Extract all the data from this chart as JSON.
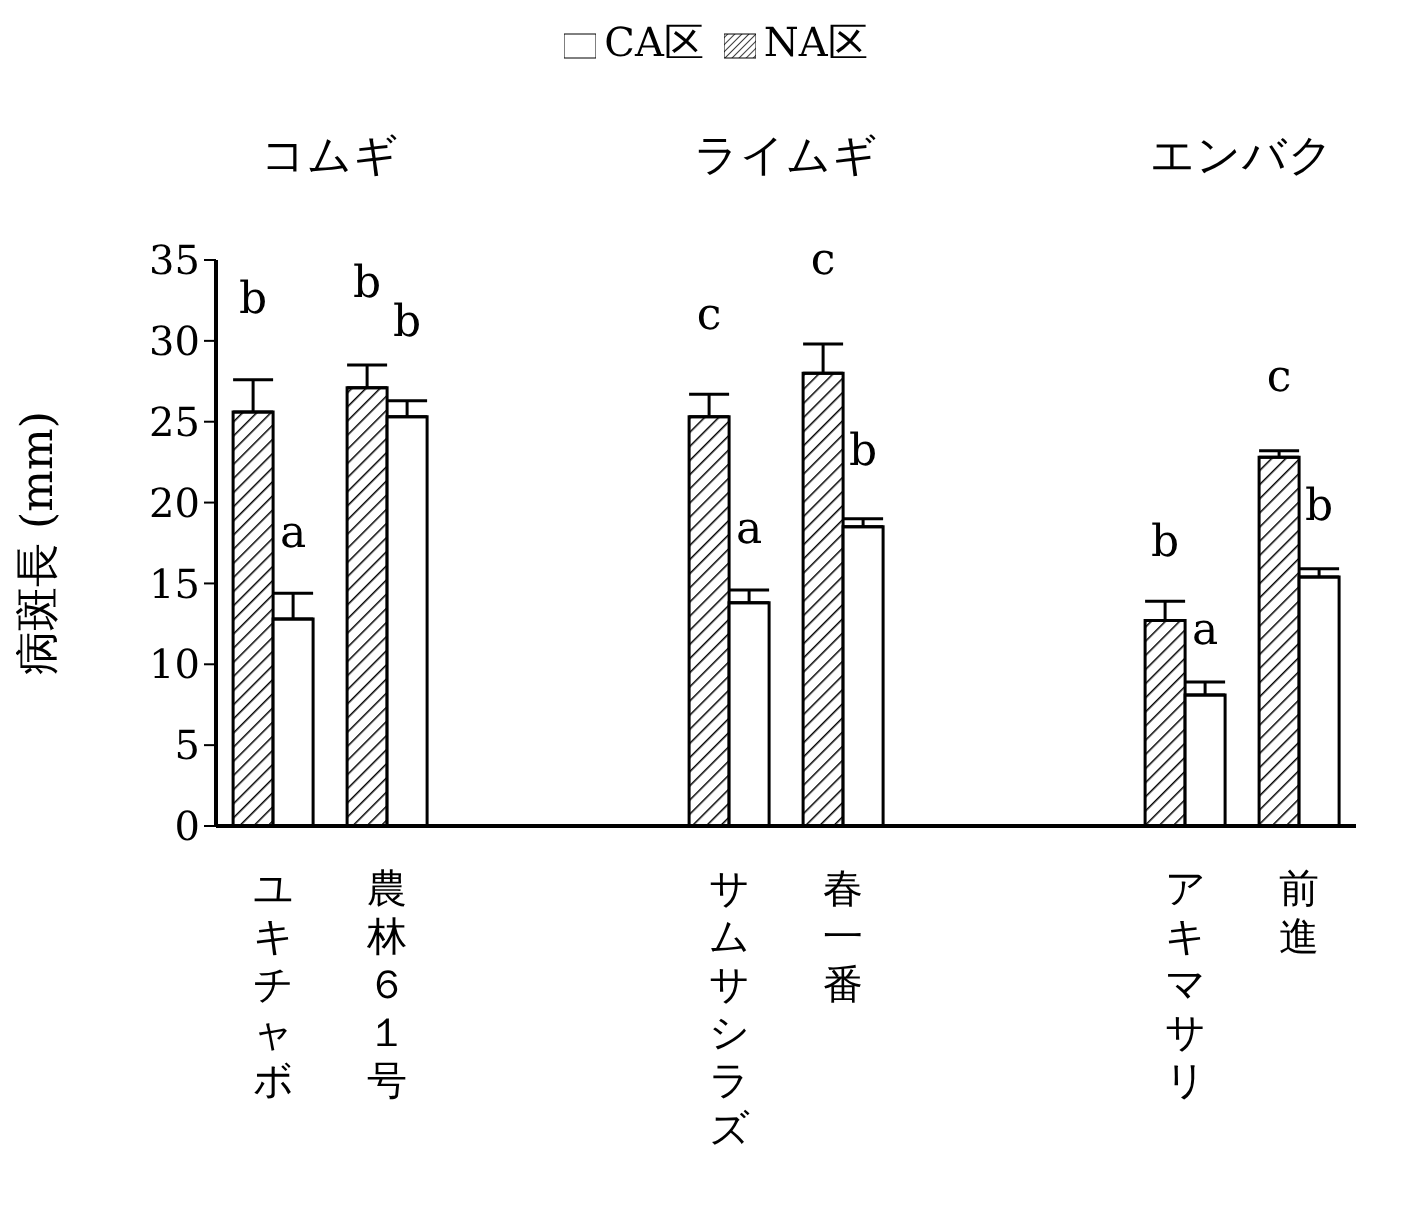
{
  "chart_data": {
    "type": "bar",
    "ylabel": "病斑長 (mm)",
    "categories": [
      "ユキチャボ",
      "農林６１号",
      null,
      null,
      "サムサシラズ",
      "春一番",
      null,
      null,
      "アキマサリ",
      "前進"
    ],
    "series": [
      {
        "name": "NA区",
        "color": "#000000",
        "values": [
          25.6,
          27.1,
          null,
          null,
          25.3,
          28.0,
          null,
          null,
          12.7,
          22.8
        ],
        "errors": [
          [
            25.6,
            27.6
          ],
          [
            27.1,
            28.5
          ],
          null,
          null,
          [
            25.3,
            26.7
          ],
          [
            28.0,
            29.8
          ],
          null,
          null,
          [
            12.7,
            13.9
          ],
          [
            22.8,
            23.2
          ]
        ],
        "value_labels": [
          "b",
          "b",
          null,
          null,
          "c",
          "c",
          null,
          null,
          "b",
          "c"
        ]
      },
      {
        "name": "CA区",
        "color": "#ffffff",
        "values": [
          12.8,
          25.3,
          null,
          null,
          13.8,
          18.5,
          null,
          null,
          8.1,
          15.4
        ],
        "errors": [
          [
            12.8,
            14.4
          ],
          [
            25.3,
            26.3
          ],
          null,
          null,
          [
            13.8,
            14.6
          ],
          [
            18.5,
            19.0
          ],
          null,
          null,
          [
            8.1,
            8.9
          ],
          [
            15.4,
            15.9
          ]
        ],
        "value_labels": [
          "a",
          "b",
          null,
          null,
          "a",
          "b",
          null,
          null,
          "a",
          "b"
        ]
      }
    ],
    "annotations": [
      "コムギ",
      "ライムギ",
      "エンバク"
    ],
    "ylim": [
      0,
      35
    ],
    "yticks": [
      0,
      5,
      10,
      15,
      20,
      25,
      30,
      35
    ],
    "legend": "top",
    "grid": false
  }
}
